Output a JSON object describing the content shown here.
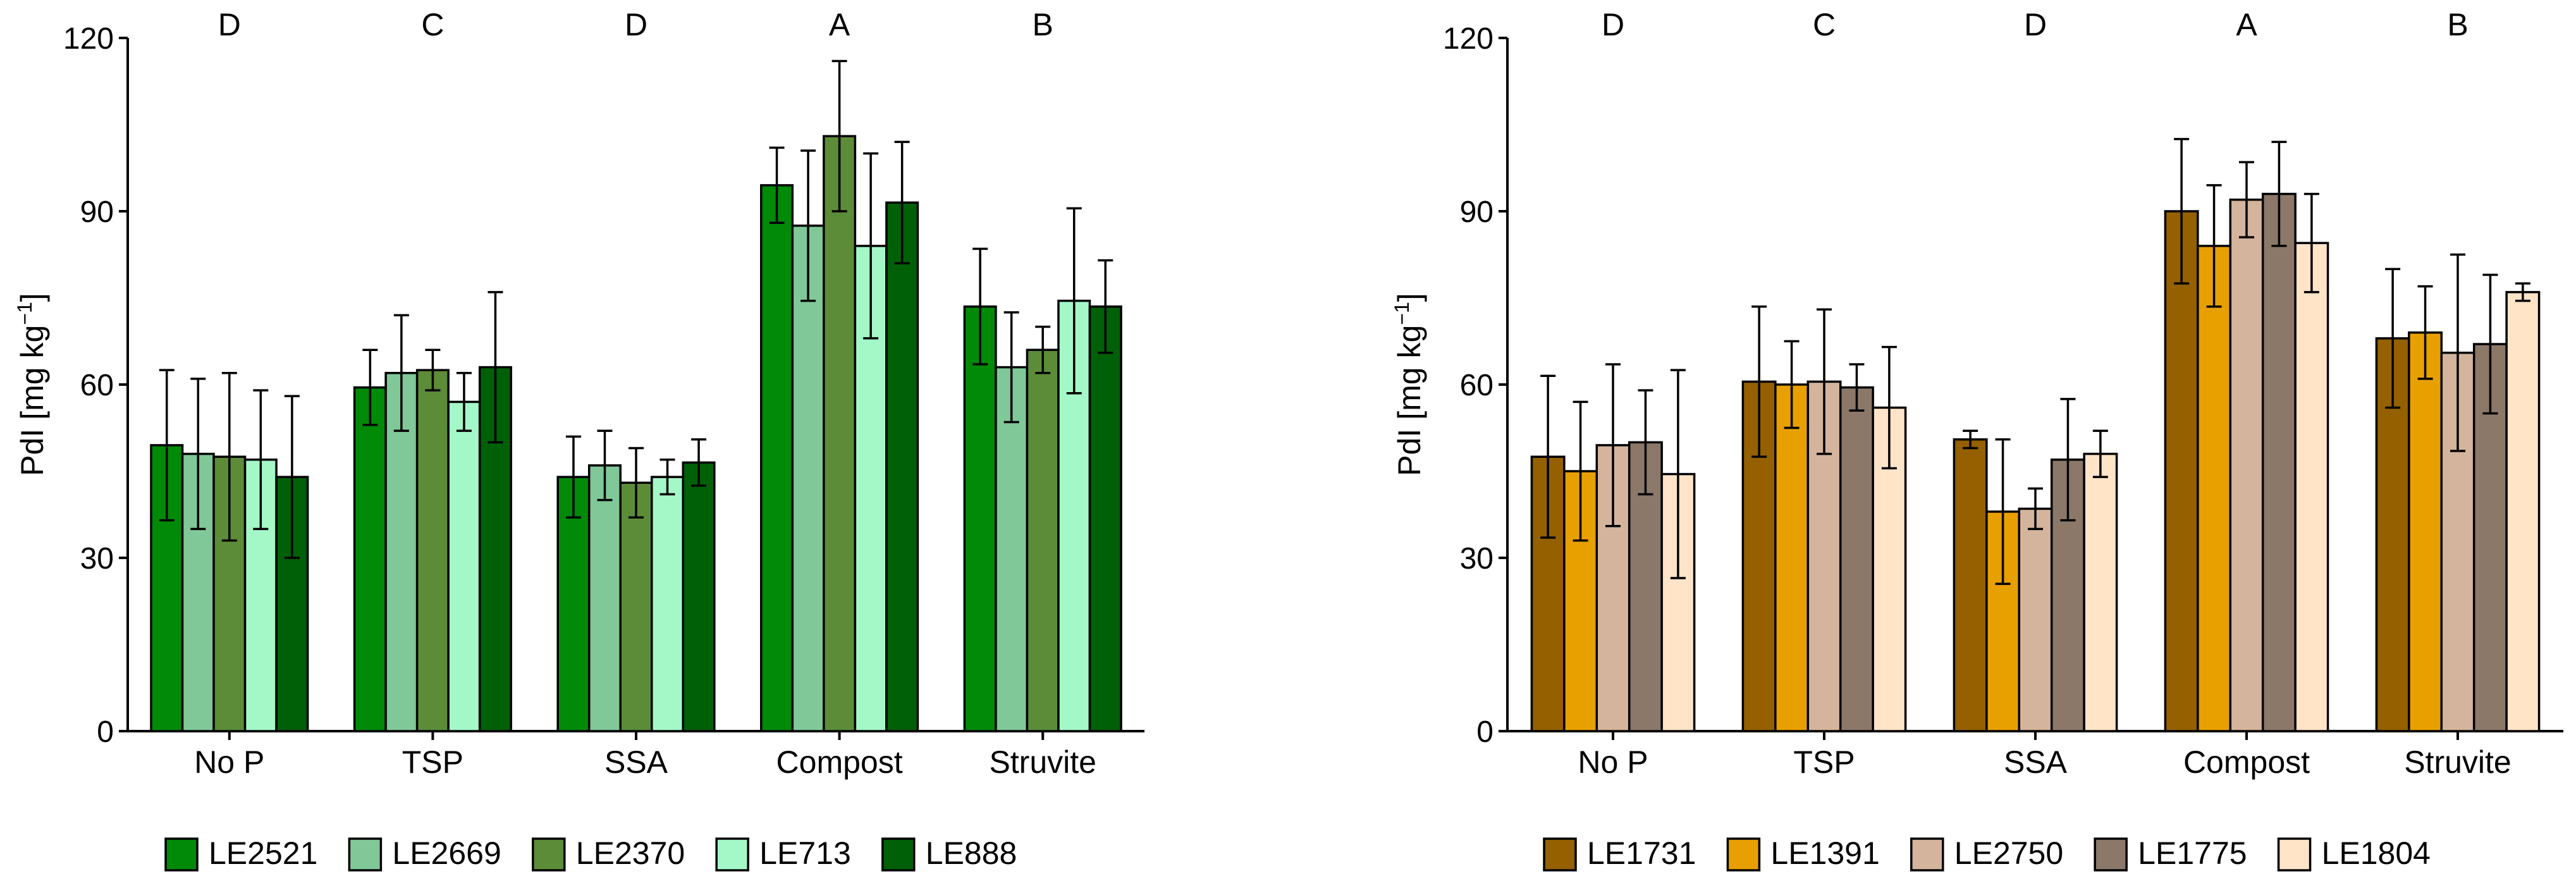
{
  "chart_data": [
    {
      "type": "bar",
      "title": "",
      "xlabel": "",
      "ylabel": "PdI [mg kg",
      "ylabel_superscript": "−1",
      "ylabel_suffix": "]",
      "ylim": [
        0,
        120
      ],
      "yticks": [
        0,
        30,
        60,
        90,
        120
      ],
      "grid": false,
      "legend_position": "bottom",
      "categories": [
        "No P",
        "TSP",
        "SSA",
        "Compost",
        "Struvite"
      ],
      "group_letters": [
        "D",
        "C",
        "D",
        "A",
        "B"
      ],
      "series": [
        {
          "name": "LE2521",
          "color": "#008a08",
          "values": [
            49.5,
            59.5,
            44,
            94.5,
            73.5
          ],
          "errors": [
            13,
            6.5,
            7,
            6.5,
            10
          ]
        },
        {
          "name": "LE2669",
          "color": "#80c898",
          "values": [
            48,
            62,
            46,
            87.5,
            63
          ],
          "errors": [
            13,
            10,
            6,
            13,
            9.5
          ]
        },
        {
          "name": "LE2370",
          "color": "#5c8c38",
          "values": [
            47.5,
            62.5,
            43,
            103,
            66
          ],
          "errors": [
            14.5,
            3.5,
            6,
            13,
            4
          ]
        },
        {
          "name": "LE713",
          "color": "#a4f8c8",
          "values": [
            47,
            57,
            44,
            84,
            74.5
          ],
          "errors": [
            12,
            5,
            3,
            16,
            16
          ]
        },
        {
          "name": "LE888",
          "color": "#006008",
          "values": [
            44,
            63,
            46.5,
            91.5,
            73.5
          ],
          "errors": [
            14,
            13,
            4,
            10.5,
            8
          ]
        }
      ]
    },
    {
      "type": "bar",
      "title": "",
      "xlabel": "",
      "ylabel": "PdI [mg kg",
      "ylabel_superscript": "−1",
      "ylabel_suffix": "]",
      "ylim": [
        0,
        120
      ],
      "yticks": [
        0,
        30,
        60,
        90,
        120
      ],
      "grid": false,
      "legend_position": "bottom",
      "categories": [
        "No P",
        "TSP",
        "SSA",
        "Compost",
        "Struvite"
      ],
      "group_letters": [
        "D",
        "C",
        "D",
        "A",
        "B"
      ],
      "series": [
        {
          "name": "LE1731",
          "color": "#946000",
          "values": [
            47.5,
            60.5,
            50.5,
            90,
            68
          ],
          "errors": [
            14,
            13,
            1.5,
            12.5,
            12
          ]
        },
        {
          "name": "LE1391",
          "color": "#e8a000",
          "values": [
            45,
            60,
            38,
            84,
            69
          ],
          "errors": [
            12,
            7.5,
            12.5,
            10.5,
            8
          ]
        },
        {
          "name": "LE2750",
          "color": "#d4b49c",
          "values": [
            49.5,
            60.5,
            38.5,
            92,
            65.5
          ],
          "errors": [
            14,
            12.5,
            3.5,
            6.5,
            17
          ]
        },
        {
          "name": "LE1775",
          "color": "#8c7868",
          "values": [
            50,
            59.5,
            47,
            93,
            67
          ],
          "errors": [
            9,
            4,
            10.5,
            9,
            12
          ]
        },
        {
          "name": "LE1804",
          "color": "#ffe4c8",
          "values": [
            44.5,
            56,
            48,
            84.5,
            76
          ],
          "errors": [
            18,
            10.5,
            4,
            8.5,
            1.5
          ]
        }
      ]
    }
  ]
}
